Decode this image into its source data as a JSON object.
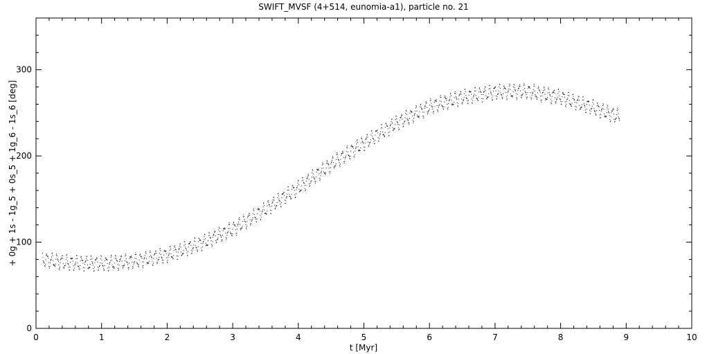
{
  "chart_data": {
    "type": "scatter",
    "title": "SWIFT_MVSF (4+514, eunomia-a1), particle no. 21",
    "xlabel": "t [Myr]",
    "ylabel": "+ 0g + 1s - 1g_5 + 0s_5 + 1g_6 - 1s_6 [deg]",
    "xlim": [
      0,
      10
    ],
    "ylim": [
      0,
      360
    ],
    "x_ticks": [
      0,
      1,
      2,
      3,
      4,
      5,
      6,
      7,
      8,
      9,
      10
    ],
    "x_tick_labels": [
      "0",
      "1",
      "2",
      "3",
      "4",
      "5",
      "6",
      "7",
      "8",
      "9",
      "10"
    ],
    "y_ticks": [
      0,
      100,
      200,
      300
    ],
    "y_tick_labels": [
      "0",
      "100",
      "200",
      "300"
    ],
    "grid": false,
    "marker_color": "#000000",
    "series": [
      {
        "x": [
          0.1,
          0.5,
          1.0,
          1.5,
          2.0,
          2.5,
          3.0,
          3.5,
          4.0,
          4.5,
          5.0,
          5.5,
          6.0,
          6.5,
          7.0,
          7.5,
          8.0,
          8.5,
          8.9
        ],
        "y": [
          80,
          76,
          75,
          78,
          85,
          98,
          115,
          138,
          163,
          190,
          215,
          238,
          257,
          268,
          274,
          275,
          268,
          256,
          245
        ]
      }
    ]
  }
}
